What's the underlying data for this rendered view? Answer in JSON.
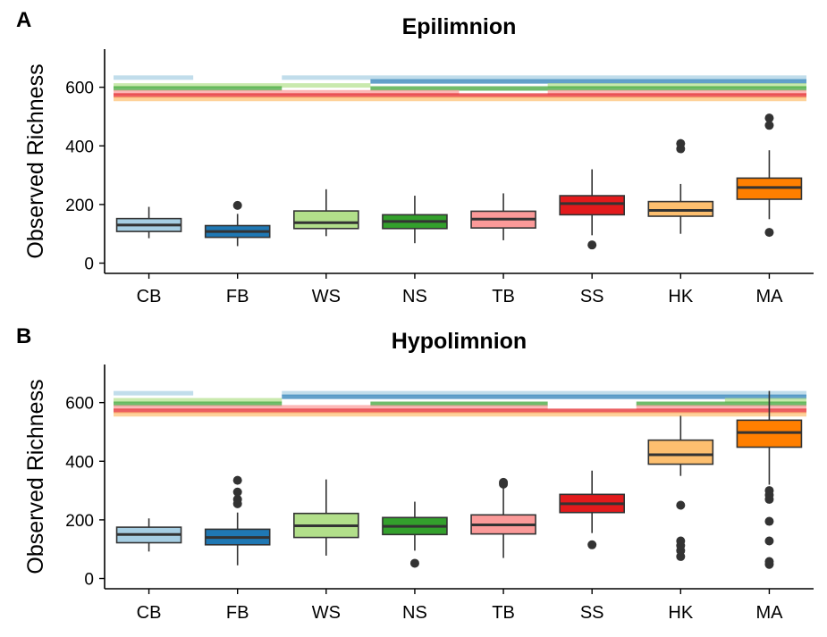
{
  "colors": {
    "CB": "#a6cee3",
    "FB": "#1f78b4",
    "WS": "#b2df8a",
    "NS": "#33a02c",
    "TB": "#fb9a99",
    "SS": "#e31a1c",
    "HK": "#fdbf6f",
    "MA": "#ff7f00"
  },
  "chart_data": [
    {
      "type": "box",
      "panel_tag": "A",
      "title": "Epilimnion",
      "ylabel": "Observed Richness",
      "xlabel": "",
      "ylim": [
        -35,
        730
      ],
      "yticks": [
        0,
        200,
        400,
        600
      ],
      "categories": [
        "CB",
        "FB",
        "WS",
        "NS",
        "TB",
        "SS",
        "HK",
        "MA"
      ],
      "boxes": [
        {
          "label": "CB",
          "whisker_low": 85,
          "q1": 108,
          "median": 130,
          "q3": 152,
          "whisker_high": 192,
          "outliers": []
        },
        {
          "label": "FB",
          "whisker_low": 58,
          "q1": 88,
          "median": 108,
          "q3": 128,
          "whisker_high": 168,
          "outliers": [
            197
          ]
        },
        {
          "label": "WS",
          "whisker_low": 92,
          "q1": 118,
          "median": 138,
          "q3": 178,
          "whisker_high": 252,
          "outliers": []
        },
        {
          "label": "NS",
          "whisker_low": 68,
          "q1": 118,
          "median": 142,
          "q3": 165,
          "whisker_high": 230,
          "outliers": []
        },
        {
          "label": "TB",
          "whisker_low": 78,
          "q1": 120,
          "median": 150,
          "q3": 177,
          "whisker_high": 238,
          "outliers": []
        },
        {
          "label": "SS",
          "whisker_low": 95,
          "q1": 165,
          "median": 203,
          "q3": 230,
          "whisker_high": 320,
          "outliers": [
            62
          ]
        },
        {
          "label": "HK",
          "whisker_low": 100,
          "q1": 160,
          "median": 180,
          "q3": 210,
          "whisker_high": 270,
          "outliers": [
            390,
            408
          ]
        },
        {
          "label": "MA",
          "whisker_low": 150,
          "q1": 218,
          "median": 258,
          "q3": 290,
          "whisker_high": 385,
          "outliers": [
            105,
            470,
            495
          ]
        }
      ],
      "significance_lines": [
        {
          "group": "CB",
          "y": 633,
          "from": "CB",
          "to": "MA",
          "gaps": [
            [
              "FB",
              "FB"
            ]
          ]
        },
        {
          "group": "FB",
          "y": 620,
          "from": "WS",
          "to": "MA",
          "gaps": [
            [
              "WS",
              "WS"
            ]
          ]
        },
        {
          "group": "WS",
          "y": 606,
          "from": "CB",
          "to": "MA",
          "gaps": [
            [
              "NS",
              "TB"
            ]
          ]
        },
        {
          "group": "NS",
          "y": 596,
          "from": "CB",
          "to": "MA",
          "gaps": [
            [
              "WS",
              "WS"
            ]
          ]
        },
        {
          "group": "TB",
          "y": 583,
          "from": "CB",
          "to": "MA",
          "gaps": [
            [
              "TB",
              "TB"
            ]
          ]
        },
        {
          "group": "SS",
          "y": 572,
          "from": "CB",
          "to": "MA",
          "gaps": []
        },
        {
          "group": "HK",
          "y": 560,
          "from": "CB",
          "to": "MA",
          "gaps": []
        }
      ]
    },
    {
      "type": "box",
      "panel_tag": "B",
      "title": "Hypolimnion",
      "ylabel": "Observed Richness",
      "xlabel": "",
      "ylim": [
        -35,
        730
      ],
      "yticks": [
        0,
        200,
        400,
        600
      ],
      "categories": [
        "CB",
        "FB",
        "WS",
        "NS",
        "TB",
        "SS",
        "HK",
        "MA"
      ],
      "boxes": [
        {
          "label": "CB",
          "whisker_low": 92,
          "q1": 122,
          "median": 150,
          "q3": 175,
          "whisker_high": 205,
          "outliers": []
        },
        {
          "label": "FB",
          "whisker_low": 45,
          "q1": 115,
          "median": 140,
          "q3": 168,
          "whisker_high": 225,
          "outliers": [
            255,
            270,
            295,
            335
          ]
        },
        {
          "label": "WS",
          "whisker_low": 78,
          "q1": 140,
          "median": 180,
          "q3": 222,
          "whisker_high": 338,
          "outliers": []
        },
        {
          "label": "NS",
          "whisker_low": 95,
          "q1": 150,
          "median": 178,
          "q3": 208,
          "whisker_high": 262,
          "outliers": [
            52
          ]
        },
        {
          "label": "TB",
          "whisker_low": 70,
          "q1": 152,
          "median": 183,
          "q3": 217,
          "whisker_high": 315,
          "outliers": [
            322,
            328
          ]
        },
        {
          "label": "SS",
          "whisker_low": 155,
          "q1": 225,
          "median": 255,
          "q3": 287,
          "whisker_high": 368,
          "outliers": [
            115
          ]
        },
        {
          "label": "HK",
          "whisker_low": 350,
          "q1": 390,
          "median": 422,
          "q3": 472,
          "whisker_high": 555,
          "outliers": [
            75,
            95,
            112,
            128,
            250
          ]
        },
        {
          "label": "MA",
          "whisker_low": 320,
          "q1": 448,
          "median": 498,
          "q3": 540,
          "whisker_high": 640,
          "outliers": [
            48,
            58,
            128,
            195,
            270,
            285,
            300
          ]
        }
      ],
      "significance_lines": [
        {
          "group": "CB",
          "y": 632,
          "from": "CB",
          "to": "MA",
          "gaps": [
            [
              "FB",
              "FB"
            ]
          ]
        },
        {
          "group": "FB",
          "y": 620,
          "from": "WS",
          "to": "MA",
          "gaps": []
        },
        {
          "group": "WS",
          "y": 608,
          "from": "CB",
          "to": "MA",
          "gaps": [
            [
              "WS",
              "HK"
            ]
          ]
        },
        {
          "group": "NS",
          "y": 596,
          "from": "CB",
          "to": "MA",
          "gaps": [
            [
              "WS",
              "WS"
            ],
            [
              "SS",
              "SS"
            ]
          ]
        },
        {
          "group": "TB",
          "y": 584,
          "from": "CB",
          "to": "MA",
          "gaps": [
            [
              "SS",
              "SS"
            ]
          ]
        },
        {
          "group": "SS",
          "y": 572,
          "from": "CB",
          "to": "MA",
          "gaps": []
        },
        {
          "group": "HK",
          "y": 560,
          "from": "CB",
          "to": "MA",
          "gaps": []
        }
      ]
    }
  ]
}
